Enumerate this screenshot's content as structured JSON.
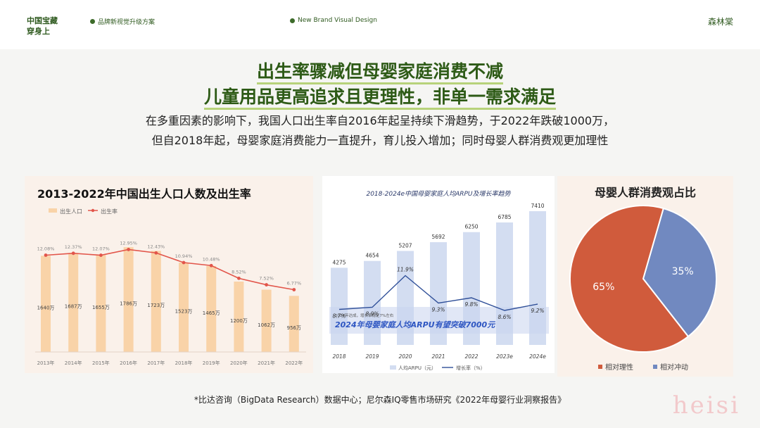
{
  "header": {
    "brand_line1": "中国宝藏",
    "brand_line2": "穿身上",
    "tag_left": "品牌新视觉升级方案",
    "tag_center": "New Brand Visual Design",
    "right_label": "森林棠"
  },
  "heading": {
    "line1": "出生率骤减但母婴家庭消费不减",
    "line2": "儿童用品更高追求且更理性，非单一需求满足",
    "sub1": "在多重因素的影响下，我国人口出生率自2016年起呈持续下滑趋势，于2022年跌破1000万，",
    "sub2": "但自2018年起，母婴家庭消费能力一直提升，育儿投入增加；同时母婴人群消费观更加理性"
  },
  "chart_data": [
    {
      "type": "bar",
      "title": "2013-2022年中国出生人口人数及出生率",
      "categories": [
        "2013年",
        "2014年",
        "2015年",
        "2016年",
        "2017年",
        "2018年",
        "2019年",
        "2020年",
        "2021年",
        "2022年"
      ],
      "series": [
        {
          "name": "出生人口",
          "kind": "bar",
          "values": [
            1640,
            1687,
            1655,
            1786,
            1723,
            1523,
            1465,
            1200,
            1062,
            956
          ],
          "labels": [
            "1640万",
            "1687万",
            "1655万",
            "1786万",
            "1723万",
            "1523万",
            "1465万",
            "1200万",
            "1062万",
            "956万"
          ]
        },
        {
          "name": "出生率",
          "kind": "line",
          "values": [
            12.08,
            12.37,
            12.07,
            12.95,
            12.43,
            10.94,
            10.48,
            8.52,
            7.52,
            6.77
          ],
          "labels": [
            "12.08%",
            "12.37%",
            "12.07%",
            "12.95%",
            "12.43%",
            "10.94%",
            "10.48%",
            "8.52%",
            "7.52%",
            "6.77%"
          ]
        }
      ],
      "legend_position": "top-left",
      "colors": {
        "bar": "#f9d3a8",
        "line": "#e2554a"
      }
    },
    {
      "type": "bar",
      "title": "2018-2024e中国母婴家庭人均ARPU及增长率趋势",
      "categories": [
        "2018",
        "2019",
        "2020",
        "2021",
        "2022",
        "2023e",
        "2024e"
      ],
      "series": [
        {
          "name": "人均ARPU（元）",
          "kind": "bar",
          "values": [
            4275,
            4654,
            5207,
            5692,
            6250,
            6785,
            7410
          ],
          "labels": [
            "4275",
            "4654",
            "5207",
            "5692",
            "6250",
            "6785",
            "7410"
          ]
        },
        {
          "name": "增长率（%）",
          "kind": "line",
          "values": [
            8.7,
            8.9,
            11.9,
            9.3,
            9.8,
            8.6,
            9.2
          ],
          "labels": [
            "8.7%",
            "8.9%",
            "11.9%",
            "9.3%",
            "9.8%",
            "8.6%",
            "9.2%"
          ]
        }
      ],
      "annotation_small": "2024年达成，增长率稳定7%左右",
      "annotation": "2024年母婴家庭人均ARPU有望突破7000元",
      "legend_position": "bottom",
      "colors": {
        "bar": "#d3ddf1",
        "line": "#2f4f98",
        "annotation": "#2e56c2"
      }
    },
    {
      "type": "pie",
      "title": "母婴人群消费观占比",
      "slices": [
        {
          "name": "相对理性",
          "value": 65,
          "label": "65%",
          "color": "#d05b3c"
        },
        {
          "name": "相对冲动",
          "value": 35,
          "label": "35%",
          "color": "#7189c0"
        }
      ],
      "legend_position": "bottom"
    }
  ],
  "footnote": "*比达咨询（BigData Research）数据中心；尼尔森IQ零售市场研究《2022年母婴行业洞察报告》",
  "watermark": "heisi"
}
